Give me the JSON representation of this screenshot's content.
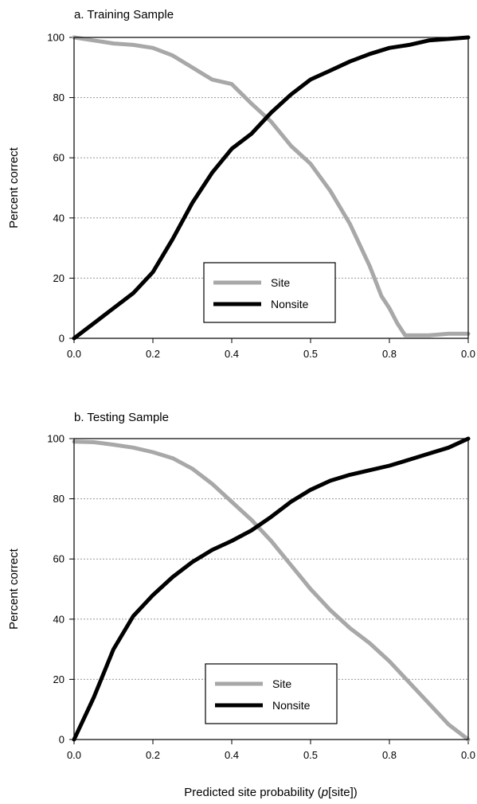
{
  "figure": {
    "xlabel_prefix": "Predicted site probability (",
    "xlabel_italic": "p",
    "xlabel_suffix": "[site])"
  },
  "chart_data": [
    {
      "type": "line",
      "title": "a. Training Sample",
      "ylabel": "Percent correct",
      "xlim": [
        0,
        1
      ],
      "ylim": [
        0,
        100
      ],
      "xticks": [
        "0.0",
        "0.2",
        "0.4",
        "0.5",
        "0.8",
        "0.0"
      ],
      "yticks": [
        "0",
        "20",
        "40",
        "60",
        "80",
        "100"
      ],
      "grid": "horizontal dotted",
      "legend_position": "bottom-center",
      "series": [
        {
          "name": "Site",
          "color": "#a8a8a8",
          "x": [
            0.0,
            0.05,
            0.1,
            0.15,
            0.2,
            0.25,
            0.3,
            0.35,
            0.4,
            0.45,
            0.5,
            0.55,
            0.6,
            0.65,
            0.7,
            0.75,
            0.78,
            0.8,
            0.82,
            0.84,
            0.86,
            0.9,
            0.95,
            1.0
          ],
          "y": [
            100,
            99,
            98,
            97.5,
            96.5,
            94,
            90,
            86,
            84.5,
            78,
            72,
            64,
            58,
            49,
            38,
            24,
            14,
            10,
            5,
            1,
            1,
            1,
            1.5,
            1.5
          ]
        },
        {
          "name": "Nonsite",
          "color": "#000000",
          "x": [
            0.0,
            0.05,
            0.1,
            0.15,
            0.2,
            0.25,
            0.3,
            0.35,
            0.4,
            0.45,
            0.5,
            0.55,
            0.6,
            0.65,
            0.7,
            0.75,
            0.8,
            0.85,
            0.9,
            0.95,
            1.0
          ],
          "y": [
            0,
            5,
            10,
            15,
            22,
            33,
            45,
            55,
            63,
            68,
            75,
            81,
            86,
            89,
            92,
            94.5,
            96.5,
            97.5,
            99,
            99.5,
            100
          ]
        }
      ]
    },
    {
      "type": "line",
      "title": "b. Testing Sample",
      "ylabel": "Percent correct",
      "xlim": [
        0,
        1
      ],
      "ylim": [
        0,
        100
      ],
      "xticks": [
        "0.0",
        "0.2",
        "0.4",
        "0.5",
        "0.8",
        "0.0"
      ],
      "yticks": [
        "0",
        "20",
        "40",
        "60",
        "80",
        "100"
      ],
      "grid": "horizontal dotted",
      "legend_position": "bottom-center",
      "series": [
        {
          "name": "Site",
          "color": "#a8a8a8",
          "x": [
            0.0,
            0.05,
            0.1,
            0.15,
            0.2,
            0.25,
            0.3,
            0.35,
            0.4,
            0.45,
            0.5,
            0.55,
            0.6,
            0.65,
            0.7,
            0.75,
            0.8,
            0.85,
            0.9,
            0.95,
            1.0
          ],
          "y": [
            99,
            98.8,
            98,
            97,
            95.5,
            93.5,
            90,
            85,
            79,
            73,
            66,
            58,
            50,
            43,
            37,
            32,
            26,
            19,
            12,
            5,
            0
          ]
        },
        {
          "name": "Nonsite",
          "color": "#000000",
          "x": [
            0.0,
            0.05,
            0.1,
            0.15,
            0.2,
            0.25,
            0.3,
            0.35,
            0.4,
            0.45,
            0.5,
            0.55,
            0.6,
            0.65,
            0.7,
            0.75,
            0.8,
            0.85,
            0.9,
            0.95,
            1.0
          ],
          "y": [
            0,
            14,
            30,
            41,
            48,
            54,
            59,
            63,
            66,
            69.5,
            74,
            79,
            83,
            86,
            88,
            89.5,
            91,
            93,
            95,
            97,
            100
          ]
        }
      ]
    }
  ]
}
